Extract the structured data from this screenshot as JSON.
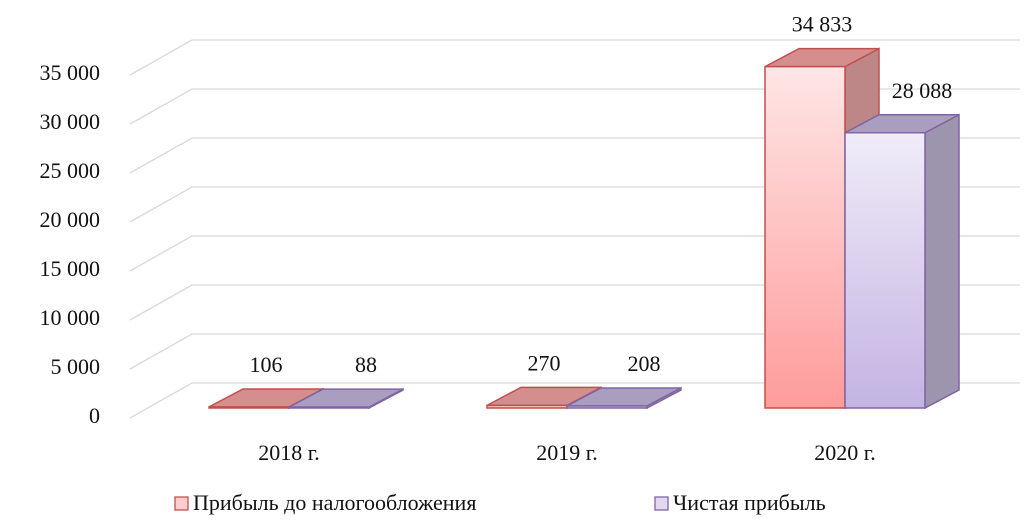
{
  "chart_data": {
    "type": "bar3d",
    "categories": [
      "2018 г.",
      "2019 г.",
      "2020 г."
    ],
    "series": [
      {
        "name": "Прибыль до налогообложения",
        "color": "#ff9b9b",
        "border": "#c0504d",
        "values": [
          106,
          270,
          34833
        ],
        "value_labels": [
          "106",
          "270",
          "34 833"
        ]
      },
      {
        "name": "Чистая прибыль",
        "color": "#c4b3e3",
        "border": "#8064a2",
        "values": [
          88,
          208,
          28088
        ],
        "value_labels": [
          "88",
          "208",
          "28 088"
        ]
      }
    ],
    "ylim": [
      0,
      35000
    ],
    "yticks": [
      0,
      {
        "value": 5000,
        "label": "5 000"
      },
      {
        "value": 10000,
        "label": "10 000"
      },
      {
        "value": 15000,
        "label": "15 000"
      },
      {
        "value": 20000,
        "label": "20 000"
      },
      {
        "value": 25000,
        "label": "25 000"
      },
      {
        "value": 30000,
        "label": "30 000"
      },
      {
        "value": 35000,
        "label": "35 000"
      }
    ],
    "grid": true,
    "legend": "bottom"
  }
}
